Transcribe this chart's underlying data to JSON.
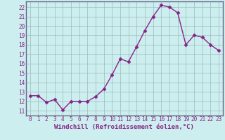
{
  "x": [
    0,
    1,
    2,
    3,
    4,
    5,
    6,
    7,
    8,
    9,
    10,
    11,
    12,
    13,
    14,
    15,
    16,
    17,
    18,
    19,
    20,
    21,
    22,
    23
  ],
  "y": [
    12.6,
    12.6,
    11.9,
    12.2,
    11.1,
    12.0,
    12.0,
    12.0,
    12.5,
    13.3,
    14.8,
    16.5,
    16.2,
    17.8,
    19.5,
    21.0,
    22.2,
    22.0,
    21.4,
    18.0,
    19.0,
    18.8,
    18.0,
    17.4
  ],
  "line_color": "#882288",
  "marker": "D",
  "markersize": 2.5,
  "linewidth": 1.0,
  "bg_color": "#cceeee",
  "grid_color": "#99bbbb",
  "spine_color": "#666688",
  "xlabel": "Windchill (Refroidissement éolien,°C)",
  "ylim": [
    10.5,
    22.6
  ],
  "xlim": [
    -0.5,
    23.5
  ],
  "yticks": [
    11,
    12,
    13,
    14,
    15,
    16,
    17,
    18,
    19,
    20,
    21,
    22
  ],
  "xticks": [
    0,
    1,
    2,
    3,
    4,
    5,
    6,
    7,
    8,
    9,
    10,
    11,
    12,
    13,
    14,
    15,
    16,
    17,
    18,
    19,
    20,
    21,
    22,
    23
  ],
  "xlabel_fontsize": 6.5,
  "tick_fontsize": 5.5
}
